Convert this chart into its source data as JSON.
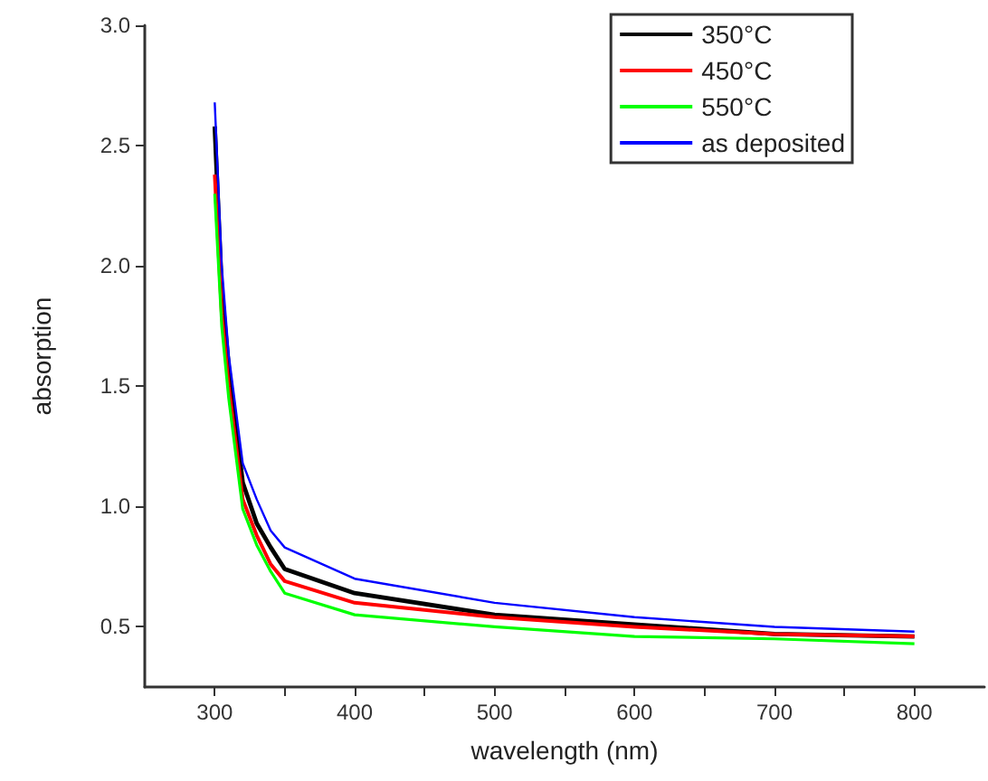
{
  "chart_data": {
    "type": "line",
    "xlabel": "wavelength (nm)",
    "ylabel": "absorption",
    "x": [
      300,
      305,
      310,
      320,
      330,
      340,
      350,
      400,
      500,
      600,
      700,
      800
    ],
    "xlim": [
      250,
      850
    ],
    "xticks": [
      300,
      {
        "value": 350,
        "label": null
      },
      400,
      {
        "value": 450,
        "label": null
      },
      500,
      {
        "value": 550,
        "label": null
      },
      600,
      {
        "value": 650,
        "label": null
      },
      700,
      {
        "value": 750,
        "label": null
      },
      800
    ],
    "ylim": [
      0.25,
      3.0
    ],
    "yticks": [
      0.5,
      {
        "value": 1,
        "label": "1.0"
      },
      1.5,
      {
        "value": 2,
        "label": "2.0"
      },
      2.5,
      {
        "value": 3,
        "label": "3.0"
      }
    ],
    "grid": false,
    "legend": "top right",
    "marker": "none",
    "line_style": "solid",
    "series": [
      {
        "name": "350°C",
        "color": "#000000",
        "values": [
          2.58,
          1.9,
          1.58,
          1.1,
          0.93,
          0.83,
          0.74,
          0.64,
          0.55,
          0.51,
          0.47,
          0.46
        ]
      },
      {
        "name": "450°C",
        "color": "#ff0000",
        "values": [
          2.38,
          1.8,
          1.5,
          1.03,
          0.88,
          0.76,
          0.69,
          0.6,
          0.54,
          0.5,
          0.47,
          0.46
        ]
      },
      {
        "name": "550°C",
        "color": "#00ff00",
        "values": [
          2.3,
          1.75,
          1.45,
          0.99,
          0.84,
          0.73,
          0.64,
          0.55,
          0.5,
          0.46,
          0.45,
          0.43
        ]
      },
      {
        "name": "as deposited",
        "color": "#0000ff",
        "values": [
          2.68,
          2.0,
          1.63,
          1.18,
          1.03,
          0.9,
          0.83,
          0.7,
          0.6,
          0.54,
          0.5,
          0.48
        ]
      }
    ]
  }
}
